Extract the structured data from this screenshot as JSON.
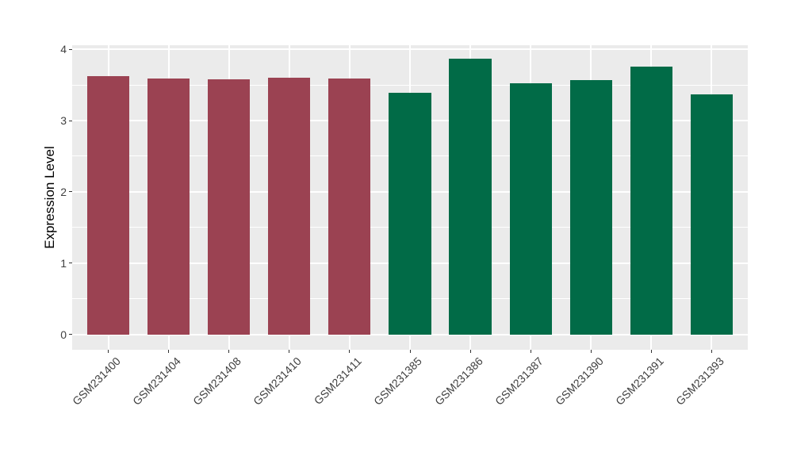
{
  "chart_data": {
    "type": "bar",
    "title": "",
    "xlabel": "",
    "ylabel": "Expression Level",
    "categories": [
      "GSM231400",
      "GSM231404",
      "GSM231408",
      "GSM231410",
      "GSM231411",
      "GSM231385",
      "GSM231386",
      "GSM231387",
      "GSM231390",
      "GSM231391",
      "GSM231393"
    ],
    "values": [
      3.62,
      3.59,
      3.58,
      3.6,
      3.59,
      3.39,
      3.87,
      3.52,
      3.57,
      3.76,
      3.37
    ],
    "bar_colors": [
      "#9B4252",
      "#9B4252",
      "#9B4252",
      "#9B4252",
      "#9B4252",
      "#016B47",
      "#016B47",
      "#016B47",
      "#016B47",
      "#016B47",
      "#016B47"
    ],
    "group_colors": {
      "maroon_group": "#9B4252",
      "green_group": "#016B47"
    },
    "yticks": [
      "0",
      "1",
      "2",
      "3",
      "4"
    ],
    "ylim": [
      0,
      4.06
    ],
    "legend_position": "none",
    "panel_bg": "#EBEBEB",
    "gridline_color": "#FFFFFF",
    "grid": "major and minor horizontal, major vertical at category centers"
  }
}
